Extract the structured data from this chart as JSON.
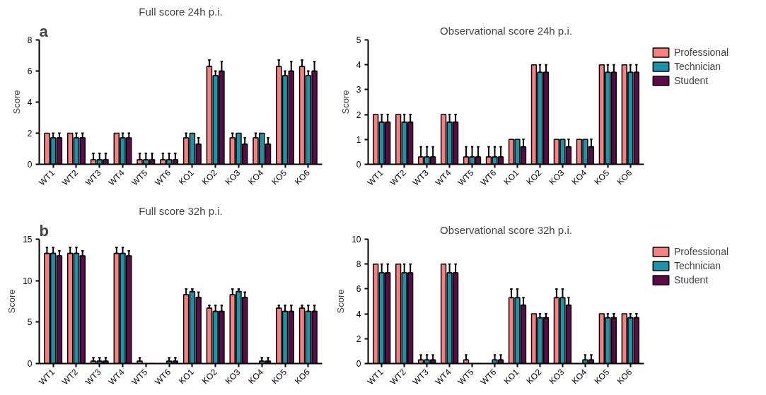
{
  "chart_data": [
    {
      "type": "bar",
      "title": "Full score 24h p.i.",
      "ylabel": "Score",
      "annotations": [
        "a"
      ],
      "categories": [
        "WT1",
        "WT2",
        "WT3",
        "WT4",
        "WT5",
        "WT6",
        "KO1",
        "KO2",
        "KO3",
        "KO4",
        "KO5",
        "KO6"
      ],
      "ylim": [
        0,
        8
      ],
      "yticks": [
        0,
        2,
        4,
        6,
        8
      ],
      "grid": false,
      "legend": false,
      "series": [
        {
          "color": "#f88080",
          "values": [
            2,
            2,
            0.3,
            2,
            0.3,
            0.3,
            1.7,
            6.3,
            1.7,
            1.7,
            6.3,
            6.3
          ],
          "errors": [
            null,
            null,
            [
              0.3,
              0.7
            ],
            null,
            [
              0.3,
              0.7
            ],
            [
              0.3,
              0.7
            ],
            [
              1.7,
              2
            ],
            [
              6.3,
              6.7
            ],
            [
              1.7,
              2
            ],
            [
              1.7,
              2
            ],
            [
              6.3,
              6.7
            ],
            [
              6.3,
              6.7
            ]
          ]
        },
        {
          "color": "#1a94a8",
          "values": [
            1.7,
            1.7,
            0.3,
            1.7,
            0.3,
            0.3,
            2,
            5.7,
            2,
            2,
            5.7,
            5.7
          ],
          "errors": [
            [
              1.7,
              2
            ],
            [
              1.7,
              2
            ],
            [
              0.3,
              0.7
            ],
            [
              1.7,
              2
            ],
            [
              0.3,
              0.7
            ],
            [
              0.3,
              0.7
            ],
            null,
            [
              5.7,
              6
            ],
            null,
            null,
            [
              5.7,
              6
            ],
            [
              5.7,
              6
            ]
          ]
        },
        {
          "color": "#5c0a4a",
          "values": [
            1.7,
            1.7,
            0.3,
            1.7,
            0.3,
            0.3,
            1.3,
            6,
            1.3,
            1.3,
            6,
            6
          ],
          "errors": [
            [
              1.7,
              2
            ],
            [
              1.7,
              2
            ],
            [
              0.3,
              0.7
            ],
            [
              1.7,
              2
            ],
            [
              0.3,
              0.7
            ],
            [
              0.3,
              0.7
            ],
            [
              1.3,
              1.7
            ],
            [
              6,
              6.6
            ],
            [
              1.3,
              1.7
            ],
            [
              1.3,
              1.7
            ],
            [
              6,
              6.6
            ],
            [
              6,
              6.6
            ]
          ]
        }
      ]
    },
    {
      "type": "bar",
      "title": "Observational score 24h p.i.",
      "ylabel": "Score",
      "categories": [
        "WT1",
        "WT2",
        "WT3",
        "WT4",
        "WT5",
        "WT6",
        "KO1",
        "KO2",
        "KO3",
        "KO4",
        "KO5",
        "KO6"
      ],
      "ylim": [
        0,
        5
      ],
      "yticks": [
        0,
        1,
        2,
        3,
        4,
        5
      ],
      "grid": false,
      "legend": "top right",
      "series": [
        {
          "name": "Professional",
          "color": "#f88080",
          "values": [
            2,
            2,
            0.3,
            2,
            0.3,
            0.3,
            1,
            4,
            1,
            1,
            4,
            4
          ],
          "errors": [
            null,
            null,
            [
              0.3,
              0.7
            ],
            null,
            [
              0.3,
              0.7
            ],
            [
              0.3,
              0.7
            ],
            null,
            null,
            null,
            null,
            null,
            null
          ]
        },
        {
          "name": "Technician",
          "color": "#1a94a8",
          "values": [
            1.7,
            1.7,
            0.3,
            1.7,
            0.3,
            0.3,
            1,
            3.7,
            1,
            1,
            3.7,
            3.7
          ],
          "errors": [
            [
              1.7,
              2
            ],
            [
              1.7,
              2
            ],
            [
              0.3,
              0.7
            ],
            [
              1.7,
              2
            ],
            [
              0.3,
              0.7
            ],
            [
              0.3,
              0.7
            ],
            null,
            [
              3.7,
              4
            ],
            null,
            null,
            [
              3.7,
              4
            ],
            [
              3.7,
              4
            ]
          ]
        },
        {
          "name": "Student",
          "color": "#5c0a4a",
          "values": [
            1.7,
            1.7,
            0.3,
            1.7,
            0.3,
            0.3,
            0.7,
            3.7,
            0.7,
            0.7,
            3.7,
            3.7
          ],
          "errors": [
            [
              1.7,
              2
            ],
            [
              1.7,
              2
            ],
            [
              0.3,
              0.7
            ],
            [
              1.7,
              2
            ],
            [
              0.3,
              0.7
            ],
            [
              0.3,
              0.7
            ],
            [
              0.7,
              1
            ],
            [
              3.7,
              4
            ],
            [
              0.7,
              1
            ],
            [
              0.7,
              1
            ],
            [
              3.7,
              4
            ],
            [
              3.7,
              4
            ]
          ]
        }
      ]
    },
    {
      "type": "bar",
      "title": "Full score 32h p.i.",
      "ylabel": "Score",
      "annotations": [
        "b"
      ],
      "categories": [
        "WT1",
        "WT2",
        "WT3",
        "WT4",
        "WT5",
        "WT6",
        "KO1",
        "KO2",
        "KO3",
        "KO4",
        "KO5",
        "KO6"
      ],
      "ylim": [
        0,
        15
      ],
      "yticks": [
        0,
        5,
        10,
        15
      ],
      "grid": false,
      "legend": false,
      "series": [
        {
          "color": "#f88080",
          "values": [
            13.3,
            13.3,
            0.3,
            13.3,
            0.3,
            0,
            8.3,
            6.7,
            8.3,
            0,
            6.7,
            6.7
          ],
          "errors": [
            [
              13.3,
              14
            ],
            [
              13.3,
              14
            ],
            [
              0.3,
              0.7
            ],
            [
              13.3,
              14
            ],
            [
              0.3,
              0.7
            ],
            null,
            [
              8.3,
              9
            ],
            [
              6.7,
              7
            ],
            [
              8.3,
              9
            ],
            null,
            [
              6.7,
              7
            ],
            [
              6.7,
              7
            ]
          ]
        },
        {
          "color": "#1a94a8",
          "values": [
            13.3,
            13.3,
            0.3,
            13.3,
            0,
            0.3,
            8.7,
            6.3,
            8.7,
            0.3,
            6.3,
            6.3
          ],
          "errors": [
            [
              13.3,
              14
            ],
            [
              13.3,
              14
            ],
            [
              0.3,
              0.7
            ],
            [
              13.3,
              14
            ],
            null,
            [
              0.3,
              0.7
            ],
            [
              8.7,
              9
            ],
            [
              6.3,
              7
            ],
            [
              8.7,
              9
            ],
            [
              0.3,
              0.7
            ],
            [
              6.3,
              7
            ],
            [
              6.3,
              7
            ]
          ]
        },
        {
          "color": "#5c0a4a",
          "values": [
            13,
            13,
            0.3,
            13,
            0,
            0.3,
            8,
            6.3,
            8,
            0.3,
            6.3,
            6.3
          ],
          "errors": [
            [
              13,
              13.6
            ],
            [
              13,
              13.6
            ],
            [
              0.3,
              0.7
            ],
            [
              13,
              13.6
            ],
            null,
            [
              0.3,
              0.7
            ],
            [
              8,
              8.6
            ],
            [
              6.3,
              7
            ],
            [
              8,
              8.6
            ],
            [
              0.3,
              0.7
            ],
            [
              6.3,
              7
            ],
            [
              6.3,
              7
            ]
          ]
        }
      ]
    },
    {
      "type": "bar",
      "title": "Observational score 32h p.i.",
      "ylabel": "Score",
      "categories": [
        "WT1",
        "WT2",
        "WT3",
        "WT4",
        "WT5",
        "WT6",
        "KO1",
        "KO2",
        "KO3",
        "KO4",
        "KO5",
        "KO6"
      ],
      "ylim": [
        0,
        10
      ],
      "yticks": [
        0,
        2,
        4,
        6,
        8,
        10
      ],
      "grid": false,
      "legend": "top right",
      "series": [
        {
          "name": "Professional",
          "color": "#f88080",
          "values": [
            8,
            8,
            0.3,
            8,
            0.3,
            0,
            5.3,
            4,
            5.3,
            0,
            4,
            4
          ],
          "errors": [
            null,
            null,
            [
              0.3,
              0.7
            ],
            null,
            [
              0.3,
              0.7
            ],
            null,
            [
              5.3,
              6
            ],
            null,
            [
              5.3,
              6
            ],
            null,
            null,
            null
          ]
        },
        {
          "name": "Technician",
          "color": "#1a94a8",
          "values": [
            7.3,
            7.3,
            0.3,
            7.3,
            0,
            0.3,
            5.3,
            3.7,
            5.3,
            0.3,
            3.7,
            3.7
          ],
          "errors": [
            [
              7.3,
              8
            ],
            [
              7.3,
              8
            ],
            [
              0.3,
              0.7
            ],
            [
              7.3,
              8
            ],
            null,
            [
              0.3,
              0.7
            ],
            [
              5.3,
              6
            ],
            [
              3.7,
              4
            ],
            [
              5.3,
              6
            ],
            [
              0.3,
              0.7
            ],
            [
              3.7,
              4
            ],
            [
              3.7,
              4
            ]
          ]
        },
        {
          "name": "Student",
          "color": "#5c0a4a",
          "values": [
            7.3,
            7.3,
            0.3,
            7.3,
            0,
            0.3,
            4.7,
            3.7,
            4.7,
            0.3,
            3.7,
            3.7
          ],
          "errors": [
            [
              7.3,
              8
            ],
            [
              7.3,
              8
            ],
            [
              0.3,
              0.7
            ],
            [
              7.3,
              8
            ],
            null,
            [
              0.3,
              0.7
            ],
            [
              4.7,
              5.3
            ],
            [
              3.7,
              4
            ],
            [
              4.7,
              5.3
            ],
            [
              0.3,
              0.7
            ],
            [
              3.7,
              4
            ],
            [
              3.7,
              4
            ]
          ]
        }
      ]
    }
  ]
}
